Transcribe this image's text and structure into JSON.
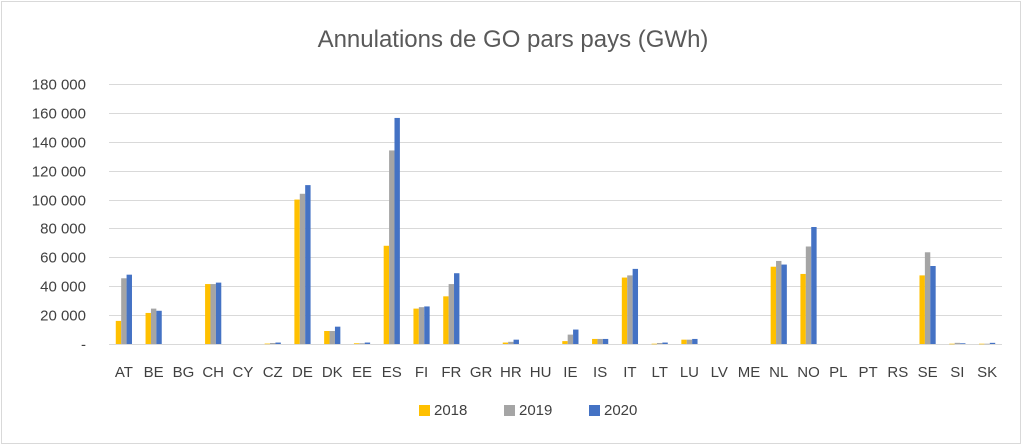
{
  "chart_data": {
    "type": "bar",
    "title": "Annulations de GO pars pays (GWh)",
    "xlabel": "",
    "ylabel": "",
    "ylim": [
      0,
      180000
    ],
    "yticks": [
      0,
      20000,
      40000,
      60000,
      80000,
      100000,
      120000,
      140000,
      160000,
      180000
    ],
    "ytick_labels": [
      "-",
      "20 000",
      "40 000",
      "60 000",
      "80 000",
      "100 000",
      "120 000",
      "140 000",
      "160 000",
      "180 000"
    ],
    "grid": true,
    "legend_position": "bottom",
    "categories": [
      "AT",
      "BE",
      "BG",
      "CH",
      "CY",
      "CZ",
      "DE",
      "DK",
      "EE",
      "ES",
      "FI",
      "FR",
      "GR",
      "HR",
      "HU",
      "IE",
      "IS",
      "IT",
      "LT",
      "LU",
      "LV",
      "ME",
      "NL",
      "NO",
      "PL",
      "PT",
      "RS",
      "SE",
      "SI",
      "SK"
    ],
    "series": [
      {
        "name": "2018",
        "color": "#ffc000",
        "values": [
          16000,
          21500,
          0,
          41500,
          0,
          300,
          100000,
          9000,
          500,
          68000,
          24500,
          33000,
          0,
          1000,
          0,
          2000,
          3500,
          46000,
          200,
          3000,
          0,
          0,
          53500,
          48500,
          0,
          0,
          0,
          47500,
          200,
          200
        ]
      },
      {
        "name": "2019",
        "color": "#a5a5a5",
        "values": [
          45500,
          24500,
          0,
          41500,
          0,
          700,
          104000,
          9000,
          500,
          134000,
          25500,
          41500,
          0,
          1500,
          0,
          6500,
          3500,
          47500,
          700,
          3000,
          0,
          0,
          57500,
          67500,
          0,
          0,
          0,
          63500,
          800,
          200
        ]
      },
      {
        "name": "2020",
        "color": "#4472c4",
        "values": [
          48000,
          23000,
          0,
          42500,
          0,
          1000,
          110000,
          12000,
          1000,
          156500,
          26000,
          49000,
          0,
          3000,
          0,
          10000,
          3500,
          52000,
          1000,
          3500,
          0,
          0,
          55000,
          81000,
          0,
          0,
          0,
          54000,
          500,
          800
        ]
      }
    ]
  }
}
